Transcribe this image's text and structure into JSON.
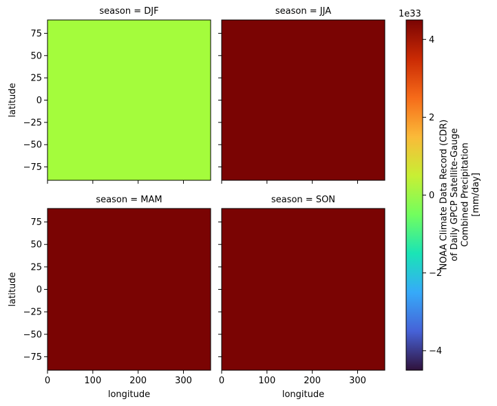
{
  "chart_data": {
    "type": "heatmap",
    "facet_label_prefix": "season = ",
    "panels": [
      {
        "season": "DJF",
        "value": 0,
        "color": "#a4fc3c"
      },
      {
        "season": "JJA",
        "value": 4.5,
        "color": "#7a0403"
      },
      {
        "season": "MAM",
        "value": 4.5,
        "color": "#7a0403"
      },
      {
        "season": "SON",
        "value": 4.5,
        "color": "#7a0403"
      }
    ],
    "xlabel": "longitude",
    "ylabel": "latitude",
    "xlim": [
      0,
      360
    ],
    "ylim": [
      -90,
      90
    ],
    "xticks": [
      0,
      100,
      200,
      300
    ],
    "yticks": [
      -75,
      -50,
      -25,
      0,
      25,
      50,
      75
    ],
    "colorbar": {
      "label_lines": [
        "NOAA Climate Data Record (CDR)",
        "of Daily GPCP Satellite-Gauge",
        "Combined Precipitation",
        "[mm/day]"
      ],
      "offset_text": "1e33",
      "range": [
        -4.5,
        4.5
      ],
      "ticks": [
        -4,
        -2,
        0,
        2,
        4
      ],
      "tick_labels": [
        "−4",
        "−2",
        "0",
        "2",
        "4"
      ],
      "colormap": "turbo",
      "stops": [
        "#30123b",
        "#4662d7",
        "#36aaf9",
        "#1ae4b6",
        "#72fe5e",
        "#c8ef34",
        "#faba39",
        "#f66b19",
        "#ca2a04",
        "#7a0403"
      ]
    }
  }
}
